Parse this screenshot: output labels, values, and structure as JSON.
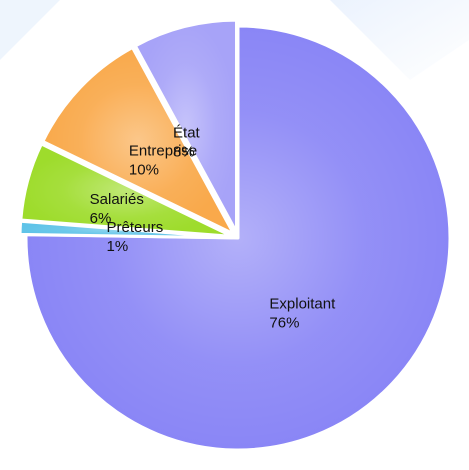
{
  "chart_data": {
    "type": "pie",
    "title": "",
    "start_angle_deg": 0,
    "direction": "clockwise",
    "slices": [
      {
        "label": "Exploitant",
        "value": 76,
        "value_label": "76%",
        "color": "#8a86f6",
        "exploded": false
      },
      {
        "label": "Prêteurs",
        "value": 1,
        "value_label": "1%",
        "color": "#5fc3e8",
        "exploded": true
      },
      {
        "label": "Salariés",
        "value": 6,
        "value_label": "6%",
        "color": "#9edc2c",
        "exploded": true
      },
      {
        "label": "Entreprise",
        "value": 10,
        "value_label": "10%",
        "color": "#f9a94b",
        "exploded": true
      },
      {
        "label": "État",
        "value": 8,
        "value_label": "8%",
        "color": "#a7a3f8",
        "exploded": true
      }
    ]
  }
}
